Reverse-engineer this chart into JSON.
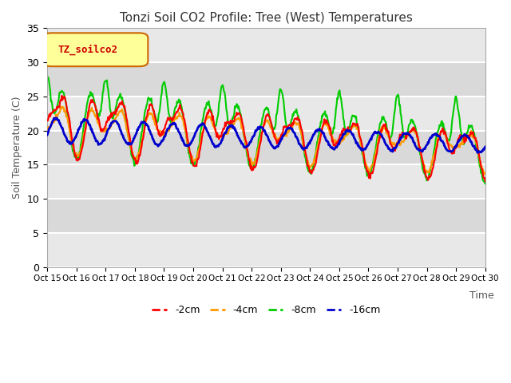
{
  "title": "Tonzi Soil CO2 Profile: Tree (West) Temperatures",
  "ylabel": "Soil Temperature (C)",
  "xlabel": "Time",
  "legend_label": "TZ_soilco2",
  "series_labels": [
    "-2cm",
    "-4cm",
    "-8cm",
    "-16cm"
  ],
  "series_colors": [
    "#ff0000",
    "#ff9900",
    "#00cc00",
    "#0000cc"
  ],
  "ylim": [
    0,
    35
  ],
  "xlim": [
    0,
    360
  ],
  "xtick_labels": [
    "Oct 15",
    "Oct 16",
    "Oct 17",
    "Oct 18",
    "Oct 19",
    "Oct 20",
    "Oct 21",
    "Oct 22",
    "Oct 23",
    "Oct 24",
    "Oct 25",
    "Oct 26",
    "Oct 27",
    "Oct 28",
    "Oct 29",
    "Oct 30"
  ],
  "xtick_positions": [
    0,
    24,
    48,
    72,
    96,
    120,
    144,
    168,
    192,
    216,
    240,
    264,
    288,
    312,
    336,
    360
  ],
  "background_color": "#ffffff",
  "plot_bg_color": "#e8e8e8",
  "grid_color": "#ffffff",
  "legend_box_color": "#ffff99",
  "legend_box_edge": "#cc6600",
  "legend_text_color": "#cc0000",
  "title_color": "#555555"
}
